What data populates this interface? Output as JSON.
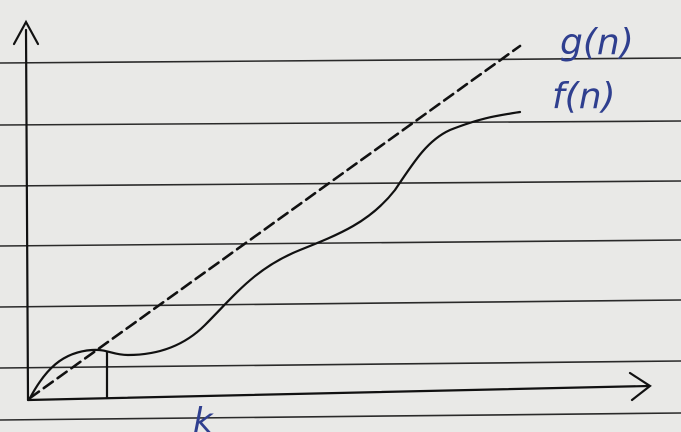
{
  "labels": {
    "g": "g(n)",
    "f": "f(n)",
    "k": "k"
  },
  "colors": {
    "paper": "#e9e9e7",
    "rule_line": "#1c1c1c",
    "pencil": "#111111",
    "blue_ink": "#2f3f8f"
  }
}
